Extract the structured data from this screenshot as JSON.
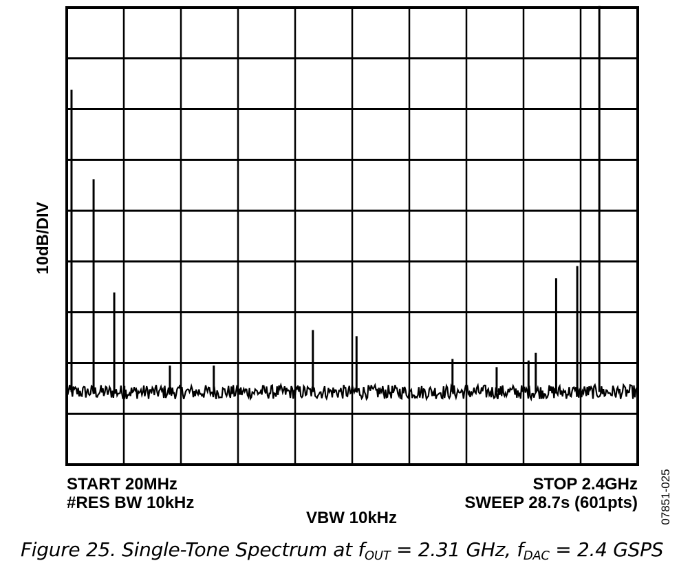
{
  "chart_data": {
    "type": "line",
    "title": "",
    "ylabel": "10dB/DIV",
    "xlabel": "",
    "x_unit": "MHz",
    "y_unit": "dB relative to the lowest grid line (10dB/DIV)",
    "xlim": [
      20,
      2400
    ],
    "ylim": [
      0,
      90
    ],
    "x_divisions": 10,
    "y_divisions": 9,
    "grid": true,
    "noise_floor": 14.3,
    "noise_peak_to_peak": 2.0,
    "spurs": [
      {
        "x": 40,
        "y": 73.8
      },
      {
        "x": 132,
        "y": 56.2
      },
      {
        "x": 218,
        "y": 33.9
      },
      {
        "x": 260,
        "y": 15.5
      },
      {
        "x": 450,
        "y": 19.5
      },
      {
        "x": 633,
        "y": 19.5
      },
      {
        "x": 1046,
        "y": 26.5
      },
      {
        "x": 1228,
        "y": 25.3
      },
      {
        "x": 1628,
        "y": 20.8
      },
      {
        "x": 1812,
        "y": 19.2
      },
      {
        "x": 1945,
        "y": 20.5
      },
      {
        "x": 1975,
        "y": 22.0
      },
      {
        "x": 2060,
        "y": 36.7
      },
      {
        "x": 2148,
        "y": 39.1
      },
      {
        "x": 2240,
        "y": 90.3
      }
    ],
    "annotations": {
      "start": "START 20MHz",
      "res_bw": "#RES BW 10kHz",
      "vbw": "VBW 10kHz",
      "stop": "STOP 2.4GHz",
      "sweep": "SWEEP 28.7s (601pts)"
    }
  },
  "figure_code": "07851-025",
  "caption": {
    "prefix": "Figure 25. Single-Tone Spectrum at f",
    "sub1": "OUT",
    "mid": " = 2.31 GHz, f",
    "sub2": "DAC",
    "suffix": " = 2.4 GSPS"
  }
}
